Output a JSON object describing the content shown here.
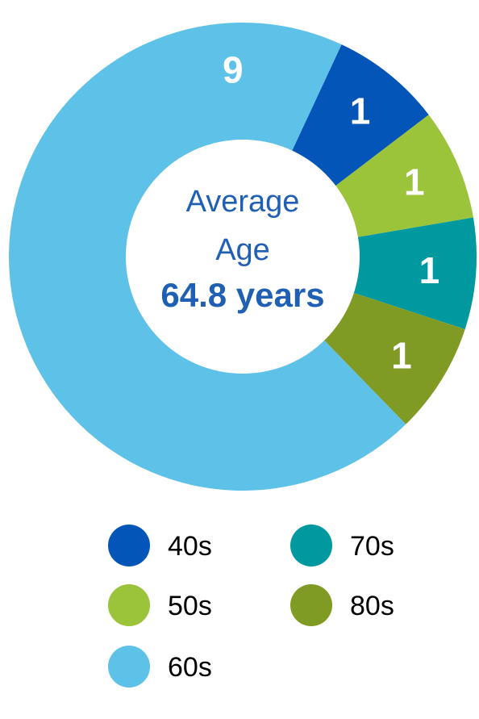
{
  "chart_data": {
    "type": "pie",
    "title": "",
    "categories": [
      "40s",
      "50s",
      "70s",
      "80s",
      "60s"
    ],
    "values": [
      1,
      1,
      1,
      1,
      9
    ],
    "colors": [
      "#0356b8",
      "#9bc43b",
      "#00999f",
      "#809b24",
      "#5ec1e8"
    ],
    "center": {
      "line1": "Average",
      "line2": "Age",
      "line3": "64.8 years"
    },
    "legend": {
      "placement": "bottom",
      "items": [
        {
          "label": "40s",
          "color": "#0356b8"
        },
        {
          "label": "70s",
          "color": "#00999f"
        },
        {
          "label": "50s",
          "color": "#9bc43b"
        },
        {
          "label": "80s",
          "color": "#809b24"
        },
        {
          "label": "60s",
          "color": "#5ec1e8"
        }
      ]
    }
  }
}
